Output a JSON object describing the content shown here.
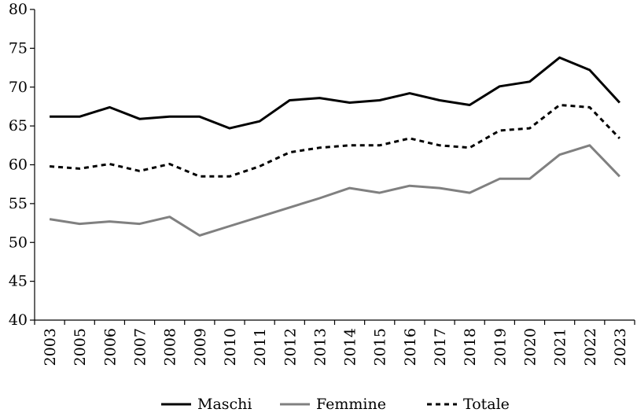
{
  "chart_data": {
    "type": "line",
    "categories": [
      "2003",
      "2005",
      "2006",
      "2007",
      "2008",
      "2009",
      "2010",
      "2011",
      "2012",
      "2013",
      "2014",
      "2015",
      "2016",
      "2017",
      "2018",
      "2019",
      "2020",
      "2021",
      "2022",
      "2023"
    ],
    "ylim": [
      40,
      80
    ],
    "yticks": [
      40,
      45,
      50,
      55,
      60,
      65,
      70,
      75,
      80
    ],
    "grid": false,
    "legend_position": "bottom",
    "series": [
      {
        "name": "Maschi",
        "color": "#000000",
        "dash": "solid",
        "values": [
          66.2,
          66.2,
          67.4,
          65.9,
          66.2,
          66.2,
          64.7,
          65.6,
          68.3,
          68.6,
          68.0,
          68.3,
          69.2,
          68.3,
          67.7,
          70.1,
          70.7,
          73.8,
          72.2,
          68.0
        ]
      },
      {
        "name": "Femmine",
        "color": "#808080",
        "dash": "solid",
        "values": [
          53.0,
          52.4,
          52.7,
          52.4,
          53.3,
          50.9,
          52.1,
          53.3,
          54.5,
          55.7,
          57.0,
          56.4,
          57.3,
          57.0,
          56.4,
          58.2,
          58.2,
          61.3,
          62.5,
          58.5
        ]
      },
      {
        "name": "Totale",
        "color": "#000000",
        "dash": "dashed",
        "values": [
          59.8,
          59.5,
          60.1,
          59.2,
          60.1,
          58.5,
          58.5,
          59.8,
          61.6,
          62.2,
          62.5,
          62.5,
          63.4,
          62.5,
          62.2,
          64.4,
          64.7,
          67.7,
          67.4,
          63.4
        ]
      }
    ]
  }
}
